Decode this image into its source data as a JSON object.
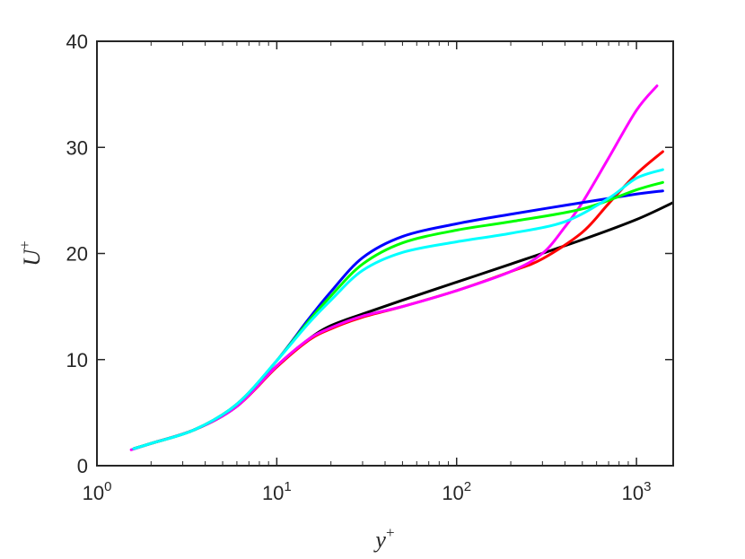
{
  "chart_data": {
    "type": "line",
    "title": "",
    "xlabel": {
      "base": "y",
      "sup": "+"
    },
    "ylabel": {
      "base": "U",
      "sup": "+"
    },
    "x_scale": "log",
    "xlim": [
      1,
      1600
    ],
    "ylim": [
      0,
      40
    ],
    "grid": false,
    "legend": "none",
    "x_ticks": [
      {
        "value": 1,
        "base": "10",
        "exp": "0"
      },
      {
        "value": 10,
        "base": "10",
        "exp": "1"
      },
      {
        "value": 100,
        "base": "10",
        "exp": "2"
      },
      {
        "value": 1000,
        "base": "10",
        "exp": "3"
      }
    ],
    "y_ticks": [
      {
        "value": 0,
        "label": "0"
      },
      {
        "value": 10,
        "label": "10"
      },
      {
        "value": 20,
        "label": "20"
      },
      {
        "value": 30,
        "label": "30"
      },
      {
        "value": 40,
        "label": "40"
      }
    ],
    "series": [
      {
        "color": "#000000",
        "points": [
          [
            1.6,
            1.6
          ],
          [
            2,
            2.1
          ],
          [
            3.5,
            3.4
          ],
          [
            6,
            5.6
          ],
          [
            10,
            9.4
          ],
          [
            15,
            11.9
          ],
          [
            20,
            13.2
          ],
          [
            30,
            14.3
          ],
          [
            50,
            15.6
          ],
          [
            100,
            17.3
          ],
          [
            200,
            19.0
          ],
          [
            500,
            21.3
          ],
          [
            1000,
            23.2
          ],
          [
            1600,
            24.8
          ]
        ]
      },
      {
        "color": "#ff0000",
        "points": [
          [
            1.6,
            1.6
          ],
          [
            2,
            2.1
          ],
          [
            3.5,
            3.4
          ],
          [
            6,
            5.6
          ],
          [
            10,
            9.3
          ],
          [
            15,
            11.8
          ],
          [
            20,
            12.9
          ],
          [
            30,
            14.0
          ],
          [
            50,
            15.0
          ],
          [
            100,
            16.5
          ],
          [
            200,
            18.3
          ],
          [
            300,
            19.5
          ],
          [
            500,
            22.0
          ],
          [
            700,
            24.7
          ],
          [
            1000,
            27.5
          ],
          [
            1400,
            29.6
          ]
        ]
      },
      {
        "color": "#ff00ff",
        "points": [
          [
            1.55,
            1.5
          ],
          [
            2,
            2.1
          ],
          [
            3.5,
            3.4
          ],
          [
            6,
            5.6
          ],
          [
            10,
            9.4
          ],
          [
            15,
            11.9
          ],
          [
            20,
            13.0
          ],
          [
            30,
            14.1
          ],
          [
            50,
            15.0
          ],
          [
            100,
            16.5
          ],
          [
            200,
            18.3
          ],
          [
            300,
            20.0
          ],
          [
            400,
            22.5
          ],
          [
            500,
            24.8
          ],
          [
            700,
            29.0
          ],
          [
            1000,
            33.5
          ],
          [
            1300,
            35.8
          ]
        ]
      },
      {
        "color": "#0000ff",
        "points": [
          [
            1.6,
            1.6
          ],
          [
            2,
            2.1
          ],
          [
            3.5,
            3.4
          ],
          [
            6,
            5.8
          ],
          [
            10,
            9.9
          ],
          [
            15,
            13.8
          ],
          [
            20,
            16.4
          ],
          [
            30,
            19.6
          ],
          [
            50,
            21.6
          ],
          [
            100,
            22.8
          ],
          [
            200,
            23.7
          ],
          [
            500,
            24.8
          ],
          [
            1000,
            25.6
          ],
          [
            1400,
            25.9
          ]
        ]
      },
      {
        "color": "#00ff00",
        "points": [
          [
            1.6,
            1.6
          ],
          [
            2,
            2.1
          ],
          [
            3.5,
            3.4
          ],
          [
            6,
            5.8
          ],
          [
            10,
            9.9
          ],
          [
            15,
            13.6
          ],
          [
            20,
            16.0
          ],
          [
            30,
            19.0
          ],
          [
            50,
            21.0
          ],
          [
            100,
            22.2
          ],
          [
            200,
            23.0
          ],
          [
            500,
            24.2
          ],
          [
            1000,
            26.0
          ],
          [
            1400,
            26.7
          ]
        ]
      },
      {
        "color": "#00ffff",
        "points": [
          [
            1.6,
            1.6
          ],
          [
            2,
            2.1
          ],
          [
            3.5,
            3.4
          ],
          [
            6,
            5.8
          ],
          [
            10,
            9.9
          ],
          [
            15,
            13.4
          ],
          [
            20,
            15.6
          ],
          [
            30,
            18.4
          ],
          [
            50,
            20.1
          ],
          [
            100,
            21.1
          ],
          [
            200,
            21.9
          ],
          [
            400,
            23.0
          ],
          [
            700,
            25.2
          ],
          [
            1000,
            27.1
          ],
          [
            1400,
            27.9
          ]
        ]
      }
    ]
  }
}
